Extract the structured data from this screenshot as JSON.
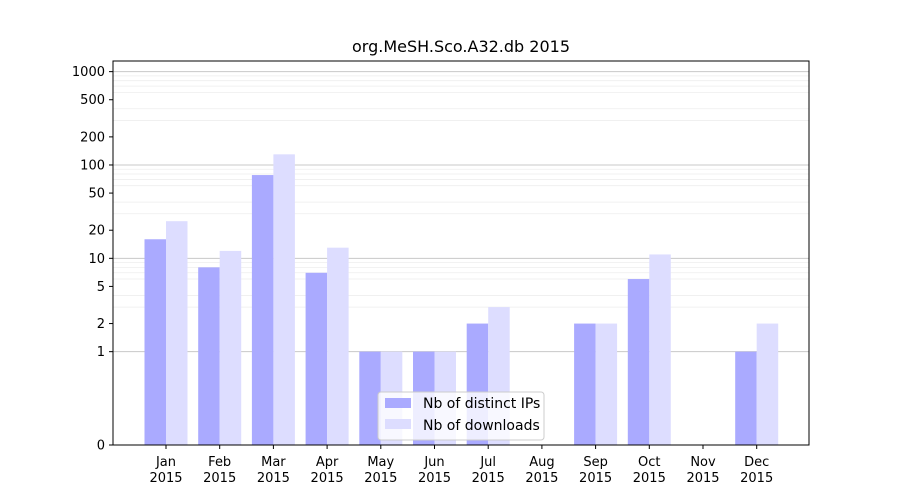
{
  "chart_data": {
    "type": "bar",
    "title": "org.MeSH.Sco.A32.db 2015",
    "xlabel": "",
    "ylabel": "",
    "yscale": "symlog",
    "ylim": [
      0,
      1300
    ],
    "yticks": [
      0,
      1,
      2,
      5,
      10,
      20,
      50,
      100,
      200,
      500,
      1000
    ],
    "categories": [
      "Jan\n2015",
      "Feb\n2015",
      "Mar\n2015",
      "Apr\n2015",
      "May\n2015",
      "Jun\n2015",
      "Jul\n2015",
      "Aug\n2015",
      "Sep\n2015",
      "Oct\n2015",
      "Nov\n2015",
      "Dec\n2015"
    ],
    "series": [
      {
        "name": "Nb of distinct IPs",
        "color": "#aaaaff",
        "values": [
          16,
          8,
          78,
          7,
          1,
          1,
          2,
          0,
          2,
          6,
          0,
          1
        ]
      },
      {
        "name": "Nb of downloads",
        "color": "#ddddff",
        "values": [
          25,
          12,
          130,
          13,
          1,
          1,
          3,
          0,
          2,
          11,
          0,
          2
        ]
      }
    ],
    "grid": true,
    "legend_position": "bottom-center"
  }
}
